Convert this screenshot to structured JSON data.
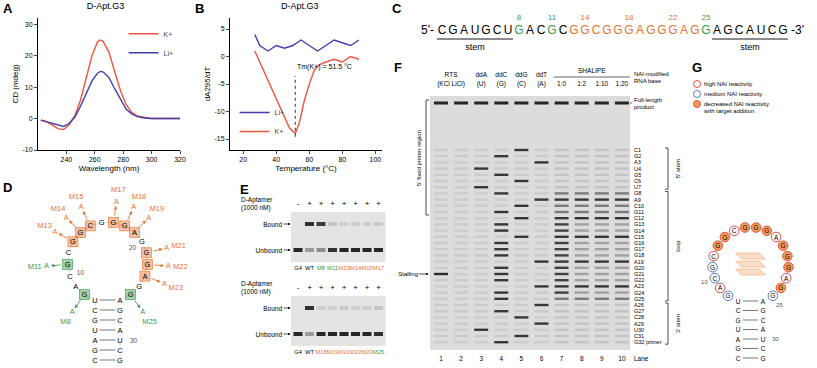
{
  "chart_data": [
    {
      "label": "A",
      "type": "line",
      "title": "D-Apt.G3",
      "x_label": "Wavelength (nm)",
      "y_label": "CD (mdeg)",
      "xlim": [
        220,
        320
      ],
      "xticks": [
        240,
        260,
        280,
        300,
        320
      ],
      "ylim": [
        -10,
        32
      ],
      "yticks": [
        -10,
        0,
        10,
        20,
        30
      ],
      "grid": false,
      "legend": "upper right",
      "series": [
        {
          "name": "K+",
          "color": "#f0533f",
          "x": [
            222,
            226,
            230,
            234,
            238,
            242,
            246,
            250,
            254,
            258,
            262,
            264,
            266,
            270,
            274,
            278,
            282,
            286,
            290,
            295,
            300,
            310,
            320
          ],
          "values": [
            -0.5,
            -1,
            -2,
            -3.2,
            -3.5,
            -2,
            1,
            6,
            13,
            20,
            24.5,
            25,
            24.5,
            21,
            15,
            9,
            4.5,
            2,
            0.8,
            0.3,
            0,
            0,
            0
          ]
        },
        {
          "name": "Li+",
          "color": "#3f3fb0",
          "x": [
            222,
            226,
            230,
            234,
            238,
            242,
            246,
            250,
            254,
            258,
            262,
            264,
            266,
            270,
            274,
            278,
            282,
            286,
            290,
            295,
            300,
            310,
            320
          ],
          "values": [
            -0.5,
            -1,
            -1.5,
            -2.2,
            -2.5,
            -1.5,
            0.5,
            4,
            8,
            12,
            14.5,
            15,
            14.8,
            13,
            9.5,
            6,
            3,
            1.5,
            0.6,
            0.2,
            0,
            0,
            0
          ]
        }
      ]
    },
    {
      "label": "B",
      "type": "line",
      "title": "D-Apt.G3",
      "x_label": "Temperature (°C)",
      "y_label": "dA295/dT",
      "xlim": [
        12,
        104
      ],
      "xticks": [
        20,
        40,
        60,
        80,
        100
      ],
      "ylim": [
        -17,
        7
      ],
      "yticks": [
        -15,
        -10,
        -5,
        0,
        5
      ],
      "grid": false,
      "legend": "lower left",
      "annotations": [
        {
          "text": "Tm(K+) = 51.5 °C",
          "x": 51.5
        }
      ],
      "series": [
        {
          "name": "Li+",
          "color": "#3f3fb0",
          "x": [
            27,
            30,
            35,
            40,
            45,
            50,
            55,
            60,
            65,
            70,
            75,
            80,
            85,
            90
          ],
          "values": [
            4,
            2,
            1,
            2,
            1.5,
            2,
            3,
            2,
            1,
            2,
            3,
            2.5,
            2,
            3
          ]
        },
        {
          "name": "K+",
          "color": "#f0533f",
          "x": [
            27,
            30,
            33,
            36,
            39,
            42,
            45,
            48,
            51.5,
            54,
            57,
            60,
            63,
            66,
            70,
            75,
            80,
            85,
            90
          ],
          "values": [
            1,
            -1,
            -3,
            -5,
            -7,
            -9,
            -11,
            -13,
            -14,
            -12,
            -8,
            -5,
            -2.5,
            -1.5,
            -1,
            -0.5,
            -1,
            0,
            -0.5
          ]
        }
      ]
    }
  ],
  "panels": {
    "C": {
      "label": "C",
      "prime5": "5'-",
      "prime3": "-3'",
      "bases": "CGAUGCUGACGCGGCGGGAGGGAGGAGCAUCG",
      "numbered": [
        8,
        11,
        14,
        18,
        22,
        25
      ],
      "green": [
        8,
        11,
        25
      ],
      "orange": [
        13,
        14,
        15,
        16,
        17,
        18,
        19,
        20,
        21,
        22,
        23,
        24
      ],
      "green_color": "#3a9d48",
      "orange_color": "#e8742e",
      "stems": [
        [
          1,
          7
        ],
        [
          26,
          32
        ]
      ],
      "stem_label": "stem"
    },
    "D": {
      "label": "D",
      "index_labels": [
        10,
        20,
        30
      ],
      "mutations": [
        {
          "pos": 8,
          "label": "M8",
          "to": "A",
          "color": "#3a9d48"
        },
        {
          "pos": 11,
          "label": "M11",
          "to": "A",
          "color": "#3a9d48"
        },
        {
          "pos": 13,
          "label": "M13",
          "to": "A",
          "color": "#e8742e"
        },
        {
          "pos": 14,
          "label": "M14",
          "to": "A",
          "color": "#e8742e"
        },
        {
          "pos": 15,
          "label": "M15",
          "to": "A",
          "color": "#e8742e"
        },
        {
          "pos": 17,
          "label": "M17",
          "to": "A",
          "color": "#e8742e"
        },
        {
          "pos": 18,
          "label": "M18",
          "to": "A",
          "color": "#e8742e"
        },
        {
          "pos": 19,
          "label": "M19",
          "to": "A",
          "color": "#e8742e"
        },
        {
          "pos": 21,
          "label": "M21",
          "to": "A",
          "color": "#e8742e"
        },
        {
          "pos": 22,
          "label": "M22",
          "to": "A",
          "color": "#e8742e"
        },
        {
          "pos": 23,
          "label": "M23",
          "to": "A",
          "color": "#e8742e"
        },
        {
          "pos": 25,
          "label": "M25",
          "to": "A",
          "color": "#3a9d48"
        }
      ]
    },
    "E": {
      "label": "E",
      "header": [
        "D-Aptamer",
        "(1000 nM)"
      ],
      "bound_label": "Bound",
      "unbound_label": "Unbound",
      "gels": [
        {
          "lanes": [
            {
              "label": "G4",
              "color": "#000000",
              "sign": "-",
              "bound": 0,
              "unbound": 0.9
            },
            {
              "label": "WT",
              "color": "#000000",
              "sign": "+",
              "bound": 0.85,
              "unbound": 0.35
            },
            {
              "label": "M8",
              "color": "#3a9d48",
              "sign": "+",
              "bound": 0.8,
              "unbound": 0.4
            },
            {
              "label": "M11",
              "color": "#3a9d48",
              "sign": "+",
              "bound": 0.15,
              "unbound": 0.85
            },
            {
              "label": "M13",
              "color": "#e8742e",
              "sign": "+",
              "bound": 0.1,
              "unbound": 0.9
            },
            {
              "label": "M14",
              "color": "#e8742e",
              "sign": "+",
              "bound": 0.1,
              "unbound": 0.9
            },
            {
              "label": "M15",
              "color": "#e8742e",
              "sign": "+",
              "bound": 0.1,
              "unbound": 0.9
            },
            {
              "label": "M17",
              "color": "#e8742e",
              "sign": "+",
              "bound": 0.12,
              "unbound": 0.9
            }
          ]
        },
        {
          "lanes": [
            {
              "label": "G4",
              "color": "#000000",
              "sign": "-",
              "bound": 0,
              "unbound": 0.9
            },
            {
              "label": "WT",
              "color": "#000000",
              "sign": "+",
              "bound": 0.85,
              "unbound": 0.35
            },
            {
              "label": "M18",
              "color": "#e8742e",
              "sign": "+",
              "bound": 0.1,
              "unbound": 0.9
            },
            {
              "label": "M19",
              "color": "#e8742e",
              "sign": "+",
              "bound": 0.1,
              "unbound": 0.9
            },
            {
              "label": "M21",
              "color": "#e8742e",
              "sign": "+",
              "bound": 0.12,
              "unbound": 0.9
            },
            {
              "label": "M22",
              "color": "#e8742e",
              "sign": "+",
              "bound": 0.1,
              "unbound": 0.9
            },
            {
              "label": "M23",
              "color": "#e8742e",
              "sign": "+",
              "bound": 0.1,
              "unbound": 0.9
            },
            {
              "label": "M25",
              "color": "#3a9d48",
              "sign": "+",
              "bound": 0.15,
              "unbound": 0.85
            }
          ]
        }
      ]
    },
    "F": {
      "label": "F",
      "groups": [
        {
          "text": "RTS",
          "sub": "(KCl LiCl)",
          "from": 1,
          "to": 2
        },
        {
          "text": "SHALIPE",
          "from": 7,
          "to": 10
        }
      ],
      "lanes": [
        {
          "number": 1,
          "kind": "rts"
        },
        {
          "number": 2,
          "kind": "rts"
        },
        {
          "number": 3,
          "kind": "seq",
          "top": "ddA",
          "sub": "(U)",
          "base": "U"
        },
        {
          "number": 4,
          "kind": "seq",
          "top": "ddC",
          "sub": "(G)",
          "base": "G"
        },
        {
          "number": 5,
          "kind": "seq",
          "top": "ddG",
          "sub": "(C)",
          "base": "C"
        },
        {
          "number": 6,
          "kind": "seq",
          "top": "ddT",
          "sub": "(A)",
          "base": "A"
        },
        {
          "number": 7,
          "kind": "shape",
          "sub": "1:0",
          "target": false
        },
        {
          "number": 8,
          "kind": "shape",
          "sub": "1:2",
          "target": true
        },
        {
          "number": 9,
          "kind": "shape",
          "sub": "1:10",
          "target": true
        },
        {
          "number": 10,
          "kind": "shape",
          "sub": "1:20",
          "target": true
        }
      ],
      "nai_label": [
        "NAI-modified",
        "RNA base"
      ],
      "full_length_label": [
        "Full-length",
        "product"
      ],
      "primer_region_label": "5' fixed primer region",
      "stalling": {
        "label": "Stalling",
        "lane": 1,
        "residue": 21
      },
      "lane_word": "Lane",
      "residue_labels": [
        "C1",
        "G2",
        "A3",
        "U4",
        "G5",
        "C6",
        "U7",
        "G8",
        "A9",
        "C10",
        "G11",
        "C12",
        "G13",
        "G14",
        "C15",
        "G16",
        "G17",
        "G18",
        "A19",
        "G20",
        "G21",
        "G22",
        "A23",
        "G24",
        "G25",
        "A26",
        "G27",
        "C28",
        "A29",
        "U30",
        "C31",
        "G32 primer"
      ],
      "regions": [
        {
          "text": "5' stem",
          "from": 1,
          "to": 7
        },
        {
          "text": "loop",
          "from": 8,
          "to": 25
        },
        {
          "text": "3' stem",
          "from": 26,
          "to": 32
        }
      ]
    },
    "G": {
      "label": "G",
      "legend": [
        {
          "text": [
            "high NAI reactivity"
          ],
          "kind": "high",
          "color": "#e03a2f"
        },
        {
          "text": [
            "medium NAI reactivity"
          ],
          "kind": "medium",
          "color": "#3b6fc4"
        },
        {
          "text": [
            "decreased NAI reactivity",
            "with target addition"
          ],
          "kind": "decreased",
          "color": "#f39c5a"
        }
      ],
      "high": [
        9,
        12,
        15,
        19,
        23
      ],
      "medium": [
        8,
        10,
        11,
        25
      ],
      "decreased": [
        13,
        14,
        16,
        17,
        18,
        20,
        21,
        22,
        24
      ],
      "index_labels": [
        10,
        25,
        30
      ]
    }
  }
}
